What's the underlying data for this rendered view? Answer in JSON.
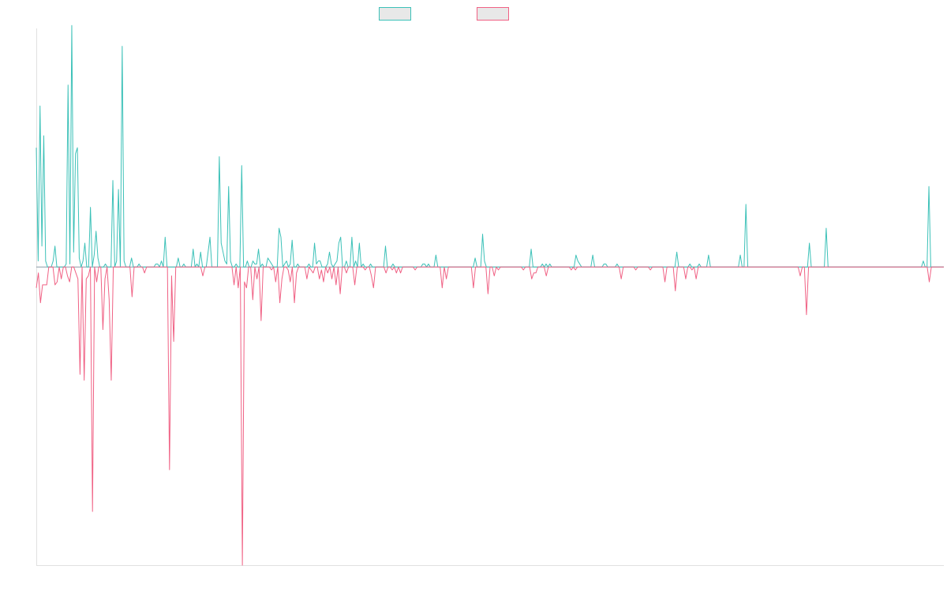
{
  "chart_data": {
    "type": "line",
    "title": "",
    "xlabel": "",
    "ylabel": "",
    "ylim": [
      -100,
      80
    ],
    "grid": false,
    "legend": {
      "position": "top-center",
      "labels": [
        "",
        ""
      ]
    },
    "colors": {
      "series_pos": "#3cc1b8",
      "series_neg": "#f06184",
      "baseline": "#8a9aa6",
      "axis": "#e0e0e0",
      "legend_fill": "#e8e8e8"
    },
    "series": [
      {
        "values": [
          40,
          2,
          54,
          7,
          44,
          2,
          0,
          0,
          0,
          2,
          7,
          0,
          0,
          0,
          0,
          0,
          1,
          61,
          1,
          81,
          5,
          38,
          40,
          3,
          0,
          2,
          8,
          0,
          0,
          20,
          0,
          4,
          12,
          3,
          0,
          0,
          0,
          1,
          0,
          0,
          0,
          29,
          0,
          2,
          26,
          0,
          74,
          2,
          0,
          0,
          0,
          3,
          0,
          0,
          0,
          1,
          0,
          0,
          0,
          0,
          0,
          0,
          0,
          0,
          1,
          1,
          0,
          2,
          0,
          10,
          0,
          0,
          0,
          0,
          0,
          0,
          3,
          0,
          0,
          1,
          0,
          0,
          0,
          0,
          6,
          0,
          1,
          0,
          5,
          0,
          0,
          0,
          5,
          10,
          0,
          0,
          0,
          0,
          37,
          8,
          5,
          2,
          1,
          27,
          2,
          0,
          0,
          1,
          0,
          0,
          34,
          0,
          0,
          2,
          0,
          0,
          2,
          1,
          1,
          6,
          0,
          1,
          0,
          0,
          3,
          2,
          1,
          0,
          0,
          0,
          13,
          10,
          0,
          1,
          2,
          0,
          1,
          9,
          0,
          0,
          1,
          0,
          0,
          0,
          0,
          0,
          1,
          0,
          0,
          8,
          1,
          2,
          2,
          0,
          0,
          0,
          1,
          5,
          1,
          0,
          1,
          2,
          8,
          10,
          0,
          0,
          2,
          0,
          0,
          10,
          0,
          2,
          0,
          8,
          0,
          1,
          0,
          0,
          0,
          1,
          0,
          0,
          0,
          0,
          0,
          0,
          0,
          7,
          0,
          0,
          0,
          1,
          0,
          0,
          0,
          0,
          0,
          0,
          0,
          0,
          0,
          0,
          0,
          0,
          0,
          0,
          0,
          1,
          1,
          0,
          1,
          0,
          0,
          0,
          4,
          0,
          0,
          0,
          0,
          0,
          0,
          0,
          0,
          0,
          0,
          0,
          0,
          0,
          0,
          0,
          0,
          0,
          0,
          0,
          0,
          3,
          0,
          0,
          0,
          11,
          2,
          0,
          0,
          0,
          0,
          0,
          0,
          0,
          0,
          0,
          0,
          0,
          0,
          0,
          0,
          0,
          0,
          0,
          0,
          0,
          0,
          0,
          0,
          0,
          0,
          6,
          0,
          0,
          0,
          0,
          0,
          1,
          0,
          1,
          0,
          1,
          0,
          0,
          0,
          0,
          0,
          0,
          0,
          0,
          0,
          0,
          0,
          0,
          0,
          4,
          2,
          1,
          0,
          0,
          0,
          0,
          0,
          0,
          4,
          0,
          0,
          0,
          0,
          0,
          1,
          1,
          0,
          0,
          0,
          0,
          0,
          1,
          0,
          0,
          0,
          0,
          0,
          0,
          0,
          0,
          0,
          0,
          0,
          0,
          0,
          0,
          0,
          0,
          0,
          0,
          0,
          0,
          0,
          0,
          0,
          0,
          0,
          0,
          0,
          0,
          0,
          0,
          0,
          5,
          0,
          0,
          0,
          0,
          0,
          0,
          1,
          0,
          0,
          0,
          0,
          1,
          0,
          0,
          0,
          0,
          4,
          0,
          0,
          0,
          0,
          0,
          0,
          0,
          0,
          0,
          0,
          0,
          0,
          0,
          0,
          0,
          0,
          4,
          0,
          0,
          21,
          0,
          0,
          0,
          0,
          0,
          0,
          0,
          0,
          0,
          0,
          0,
          0,
          0,
          0,
          0,
          0,
          0,
          0,
          0,
          0,
          0,
          0,
          0,
          0,
          0,
          0,
          0,
          0,
          0,
          0,
          0,
          0,
          0,
          8,
          0,
          0,
          0,
          0,
          0,
          0,
          0,
          0,
          13,
          0,
          0,
          0,
          0,
          0,
          0,
          0,
          0,
          0,
          0,
          0,
          0,
          0,
          0,
          0,
          0,
          0,
          0,
          0,
          0,
          0,
          0,
          0,
          0,
          0,
          0,
          0,
          0,
          0,
          0,
          0,
          0,
          0,
          0,
          0,
          0,
          0,
          0,
          0,
          0,
          0,
          0,
          0,
          0,
          0,
          0,
          0,
          0,
          0,
          0,
          0,
          2,
          0,
          0,
          27,
          0,
          0,
          0,
          0,
          0,
          0,
          0,
          0
        ]
      },
      {
        "values": [
          -7,
          -2,
          -12,
          -6,
          -6,
          -6,
          0,
          0,
          0,
          -6,
          -5,
          0,
          -4,
          0,
          0,
          -3,
          -5,
          0,
          0,
          -2,
          -4,
          -36,
          0,
          -38,
          -4,
          -3,
          0,
          -82,
          0,
          -5,
          0,
          0,
          -21,
          -4,
          0,
          -11,
          -38,
          0,
          0,
          0,
          0,
          0,
          0,
          0,
          0,
          0,
          -10,
          0,
          0,
          0,
          0,
          0,
          -2,
          0,
          0,
          0,
          0,
          0,
          0,
          0,
          0,
          0,
          0,
          0,
          -68,
          -3,
          -25,
          0,
          0,
          0,
          0,
          0,
          0,
          0,
          0,
          0,
          0,
          0,
          0,
          0,
          -3,
          0,
          0,
          0,
          0,
          0,
          0,
          0,
          0,
          0,
          0,
          0,
          0,
          0,
          0,
          -6,
          0,
          -7,
          0,
          -100,
          -5,
          -7,
          0,
          0,
          -11,
          0,
          -4,
          0,
          -18,
          0,
          0,
          0,
          0,
          -1,
          0,
          -5,
          0,
          -12,
          -4,
          0,
          0,
          -1,
          -5,
          0,
          -12,
          -2,
          0,
          0,
          0,
          0,
          -4,
          0,
          -1,
          -2,
          0,
          0,
          -4,
          -1,
          -5,
          0,
          -2,
          0,
          -4,
          0,
          -6,
          0,
          -9,
          0,
          0,
          -2,
          0,
          0,
          0,
          -6,
          0,
          0,
          0,
          0,
          -1,
          0,
          0,
          -3,
          -7,
          0,
          0,
          0,
          0,
          0,
          -2,
          0,
          0,
          -1,
          0,
          -2,
          0,
          -2,
          0,
          0,
          0,
          0,
          0,
          0,
          -1,
          0,
          0,
          0,
          0,
          0,
          0,
          0,
          0,
          0,
          0,
          0,
          0,
          -7,
          0,
          -4,
          0,
          0,
          0,
          0,
          0,
          0,
          0,
          0,
          0,
          0,
          0,
          0,
          -7,
          0,
          0,
          0,
          0,
          0,
          0,
          -9,
          0,
          0,
          -3,
          0,
          -1,
          0,
          0,
          0,
          0,
          0,
          0,
          0,
          0,
          0,
          0,
          0,
          -1,
          0,
          0,
          0,
          -4,
          -2,
          -2,
          0,
          0,
          0,
          0,
          -3,
          0,
          0,
          0,
          0,
          0,
          0,
          0,
          0,
          0,
          0,
          0,
          -1,
          0,
          -1,
          0,
          0,
          0,
          0,
          0,
          0,
          0,
          0,
          0,
          0,
          0,
          0,
          0,
          0,
          0,
          0,
          0,
          0,
          0,
          0,
          0,
          -4,
          0,
          0,
          0,
          0,
          0,
          0,
          -1,
          0,
          0,
          0,
          0,
          0,
          0,
          -1,
          0,
          0,
          0,
          0,
          0,
          0,
          -5,
          0,
          0,
          0,
          0,
          -8,
          0,
          0,
          0,
          0,
          -4,
          0,
          0,
          -1,
          0,
          -4,
          0,
          0,
          0,
          0,
          0,
          0,
          0,
          0,
          0,
          0,
          0,
          0,
          0,
          0,
          0,
          0,
          0,
          0,
          0,
          0,
          0,
          0,
          0,
          0,
          0,
          0,
          0,
          0,
          0,
          0,
          0,
          0,
          0,
          0,
          0,
          0,
          0,
          0,
          0,
          0,
          0,
          0,
          0,
          0,
          0,
          0,
          0,
          0,
          0,
          -3,
          0,
          0,
          -16,
          0,
          0,
          0,
          0,
          0,
          0,
          0,
          0,
          0,
          0,
          0,
          0,
          0,
          0,
          0,
          0,
          0,
          0,
          0,
          0,
          0,
          0,
          0,
          0,
          0,
          0,
          0,
          0,
          0,
          0,
          0,
          0,
          0,
          0,
          0,
          0,
          0,
          0,
          0,
          0,
          0,
          0,
          0,
          0,
          0,
          0,
          0,
          0,
          0,
          0,
          0,
          0,
          0,
          0,
          0,
          0,
          0,
          0,
          -5,
          0,
          0,
          0,
          0,
          0,
          0,
          0
        ]
      }
    ]
  }
}
